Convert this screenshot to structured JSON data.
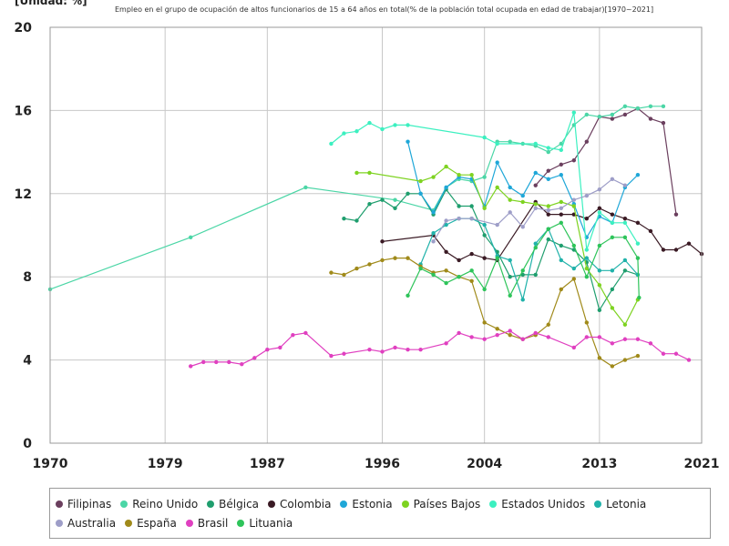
{
  "unit_label": "[Unidad: %]",
  "chart_data": {
    "type": "line",
    "title": "Empleo en el grupo de ocupación de altos funcionarios de 15 a 64 años en total(% de la población total ocupada en edad de trabajar)[1970~2021]",
    "xlabel": "",
    "ylabel": "",
    "xlim": [
      1970,
      2021
    ],
    "ylim": [
      0,
      20
    ],
    "x_ticks": [
      1970,
      1979,
      1987,
      1996,
      2004,
      2013,
      2021
    ],
    "y_ticks": [
      0,
      4,
      8,
      12,
      16,
      20
    ],
    "grid": true,
    "legend_position": "bottom",
    "series": [
      {
        "name": "Filipinas",
        "color": "#6b3f5e",
        "points": [
          [
            2008,
            12.4
          ],
          [
            2009,
            13.1
          ],
          [
            2010,
            13.4
          ],
          [
            2011,
            13.6
          ],
          [
            2012,
            14.5
          ],
          [
            2013,
            15.7
          ],
          [
            2014,
            15.6
          ],
          [
            2015,
            15.8
          ],
          [
            2016,
            16.1
          ],
          [
            2017,
            15.6
          ],
          [
            2018,
            15.4
          ],
          [
            2019,
            11.0
          ]
        ]
      },
      {
        "name": "Reino Unido",
        "color": "#4bd6a6",
        "points": [
          [
            1970,
            7.4
          ],
          [
            1981,
            9.9
          ],
          [
            1990,
            12.3
          ],
          [
            1997,
            11.7
          ],
          [
            2000,
            11.2
          ],
          [
            2001,
            12.3
          ],
          [
            2002,
            12.7
          ],
          [
            2003,
            12.6
          ],
          [
            2004,
            12.8
          ],
          [
            2005,
            14.5
          ],
          [
            2006,
            14.5
          ],
          [
            2007,
            14.4
          ],
          [
            2008,
            14.3
          ],
          [
            2009,
            14.0
          ],
          [
            2010,
            14.4
          ],
          [
            2011,
            15.3
          ],
          [
            2012,
            15.8
          ],
          [
            2013,
            15.7
          ],
          [
            2014,
            15.8
          ],
          [
            2015,
            16.2
          ],
          [
            2016,
            16.1
          ],
          [
            2017,
            16.2
          ],
          [
            2018,
            16.2
          ]
        ]
      },
      {
        "name": "Bélgica",
        "color": "#1f9e6e",
        "points": [
          [
            1993,
            10.8
          ],
          [
            1994,
            10.7
          ],
          [
            1995,
            11.5
          ],
          [
            1996,
            11.7
          ],
          [
            1997,
            11.3
          ],
          [
            1998,
            12.0
          ],
          [
            1999,
            12.0
          ],
          [
            2000,
            11.0
          ],
          [
            2001,
            12.2
          ],
          [
            2002,
            11.4
          ],
          [
            2003,
            11.4
          ],
          [
            2004,
            10.0
          ],
          [
            2005,
            9.2
          ],
          [
            2006,
            8.0
          ],
          [
            2007,
            8.1
          ],
          [
            2008,
            8.1
          ],
          [
            2009,
            9.8
          ],
          [
            2010,
            9.5
          ],
          [
            2011,
            9.3
          ],
          [
            2012,
            8.7
          ],
          [
            2013,
            6.4
          ],
          [
            2014,
            7.4
          ],
          [
            2015,
            8.3
          ],
          [
            2016,
            8.1
          ]
        ]
      },
      {
        "name": "Colombia",
        "color": "#3a1a24",
        "points": [
          [
            1996,
            9.7
          ],
          [
            2000,
            10.0
          ],
          [
            2001,
            9.2
          ],
          [
            2002,
            8.8
          ],
          [
            2003,
            9.1
          ],
          [
            2004,
            8.9
          ],
          [
            2005,
            8.8
          ],
          [
            2008,
            11.6
          ],
          [
            2009,
            11.0
          ],
          [
            2010,
            11.0
          ],
          [
            2011,
            11.0
          ],
          [
            2012,
            10.8
          ],
          [
            2013,
            11.3
          ],
          [
            2014,
            11.0
          ],
          [
            2015,
            10.8
          ],
          [
            2016,
            10.6
          ],
          [
            2017,
            10.2
          ],
          [
            2018,
            9.3
          ],
          [
            2019,
            9.3
          ],
          [
            2020,
            9.6
          ],
          [
            2021,
            9.1
          ]
        ]
      },
      {
        "name": "Estonia",
        "color": "#1fa7d8",
        "points": [
          [
            1998,
            14.5
          ],
          [
            1999,
            12.0
          ],
          [
            2000,
            11.1
          ],
          [
            2001,
            12.3
          ],
          [
            2002,
            12.8
          ],
          [
            2003,
            12.7
          ],
          [
            2004,
            11.4
          ],
          [
            2005,
            13.5
          ],
          [
            2006,
            12.3
          ],
          [
            2007,
            11.9
          ],
          [
            2008,
            13.0
          ],
          [
            2009,
            12.7
          ],
          [
            2010,
            12.9
          ],
          [
            2011,
            11.5
          ],
          [
            2012,
            9.9
          ],
          [
            2013,
            10.9
          ],
          [
            2014,
            10.6
          ],
          [
            2015,
            12.3
          ],
          [
            2016,
            12.9
          ]
        ]
      },
      {
        "name": "Países Bajos",
        "color": "#7ed321",
        "points": [
          [
            1994,
            13.0
          ],
          [
            1995,
            13.0
          ],
          [
            1999,
            12.6
          ],
          [
            2000,
            12.8
          ],
          [
            2001,
            13.3
          ],
          [
            2002,
            12.9
          ],
          [
            2003,
            12.9
          ],
          [
            2004,
            11.3
          ],
          [
            2005,
            12.3
          ],
          [
            2006,
            11.7
          ],
          [
            2007,
            11.6
          ],
          [
            2008,
            11.5
          ],
          [
            2009,
            11.4
          ],
          [
            2010,
            11.6
          ],
          [
            2011,
            11.4
          ],
          [
            2012,
            8.4
          ],
          [
            2013,
            7.6
          ],
          [
            2014,
            6.5
          ],
          [
            2015,
            5.7
          ],
          [
            2016,
            6.9
          ]
        ]
      },
      {
        "name": "Estados Unidos",
        "color": "#3cf0c0",
        "points": [
          [
            1992,
            14.4
          ],
          [
            1993,
            14.9
          ],
          [
            1994,
            15.0
          ],
          [
            1995,
            15.4
          ],
          [
            1996,
            15.1
          ],
          [
            1997,
            15.3
          ],
          [
            1998,
            15.3
          ],
          [
            2004,
            14.7
          ],
          [
            2005,
            14.4
          ],
          [
            2008,
            14.4
          ],
          [
            2009,
            14.2
          ],
          [
            2010,
            14.1
          ],
          [
            2011,
            15.9
          ],
          [
            2012,
            9.3
          ],
          [
            2013,
            11.1
          ],
          [
            2014,
            10.6
          ],
          [
            2015,
            10.6
          ],
          [
            2016,
            9.6
          ]
        ]
      },
      {
        "name": "Letonia",
        "color": "#20b2aa",
        "points": [
          [
            1999,
            8.6
          ],
          [
            2000,
            10.1
          ],
          [
            2001,
            10.5
          ],
          [
            2002,
            10.8
          ],
          [
            2003,
            10.8
          ],
          [
            2004,
            10.5
          ],
          [
            2005,
            9.0
          ],
          [
            2006,
            8.8
          ],
          [
            2007,
            6.9
          ],
          [
            2008,
            9.6
          ],
          [
            2009,
            10.3
          ],
          [
            2010,
            8.8
          ],
          [
            2011,
            8.4
          ],
          [
            2012,
            8.9
          ],
          [
            2013,
            8.3
          ],
          [
            2014,
            8.3
          ],
          [
            2015,
            8.8
          ],
          [
            2016,
            8.1
          ]
        ]
      },
      {
        "name": "Australia",
        "color": "#9e9ec8",
        "points": [
          [
            2000,
            9.7
          ],
          [
            2001,
            10.7
          ],
          [
            2002,
            10.8
          ],
          [
            2003,
            10.8
          ],
          [
            2005,
            10.5
          ],
          [
            2006,
            11.1
          ],
          [
            2007,
            10.4
          ],
          [
            2008,
            11.3
          ],
          [
            2009,
            11.2
          ],
          [
            2010,
            11.3
          ],
          [
            2011,
            11.7
          ],
          [
            2012,
            11.9
          ],
          [
            2013,
            12.2
          ],
          [
            2014,
            12.7
          ],
          [
            2015,
            12.4
          ]
        ]
      },
      {
        "name": "España",
        "color": "#a08a1a",
        "points": [
          [
            1992,
            8.2
          ],
          [
            1993,
            8.1
          ],
          [
            1994,
            8.4
          ],
          [
            1995,
            8.6
          ],
          [
            1996,
            8.8
          ],
          [
            1997,
            8.9
          ],
          [
            1998,
            8.9
          ],
          [
            1999,
            8.5
          ],
          [
            2000,
            8.2
          ],
          [
            2001,
            8.3
          ],
          [
            2002,
            8.0
          ],
          [
            2003,
            7.8
          ],
          [
            2004,
            5.8
          ],
          [
            2005,
            5.5
          ],
          [
            2006,
            5.2
          ],
          [
            2007,
            5.0
          ],
          [
            2008,
            5.2
          ],
          [
            2009,
            5.7
          ],
          [
            2010,
            7.4
          ],
          [
            2011,
            7.9
          ],
          [
            2012,
            5.8
          ],
          [
            2013,
            4.1
          ],
          [
            2014,
            3.7
          ],
          [
            2015,
            4.0
          ],
          [
            2016,
            4.2
          ]
        ]
      },
      {
        "name": "Brasil",
        "color": "#e040c0",
        "points": [
          [
            1981,
            3.7
          ],
          [
            1982,
            3.9
          ],
          [
            1983,
            3.9
          ],
          [
            1984,
            3.9
          ],
          [
            1985,
            3.8
          ],
          [
            1986,
            4.1
          ],
          [
            1987,
            4.5
          ],
          [
            1988,
            4.6
          ],
          [
            1989,
            5.2
          ],
          [
            1990,
            5.3
          ],
          [
            1992,
            4.2
          ],
          [
            1993,
            4.3
          ],
          [
            1995,
            4.5
          ],
          [
            1996,
            4.4
          ],
          [
            1997,
            4.6
          ],
          [
            1998,
            4.5
          ],
          [
            1999,
            4.5
          ],
          [
            2001,
            4.8
          ],
          [
            2002,
            5.3
          ],
          [
            2003,
            5.1
          ],
          [
            2004,
            5.0
          ],
          [
            2005,
            5.2
          ],
          [
            2006,
            5.4
          ],
          [
            2007,
            5.0
          ],
          [
            2008,
            5.3
          ],
          [
            2009,
            5.1
          ],
          [
            2011,
            4.6
          ],
          [
            2012,
            5.1
          ],
          [
            2013,
            5.1
          ],
          [
            2014,
            4.8
          ],
          [
            2015,
            5.0
          ],
          [
            2016,
            5.0
          ],
          [
            2017,
            4.8
          ],
          [
            2018,
            4.3
          ],
          [
            2019,
            4.3
          ],
          [
            2020,
            4.0
          ]
        ]
      },
      {
        "name": "Lituania",
        "color": "#2ec45a",
        "points": [
          [
            1998,
            7.1
          ],
          [
            1999,
            8.4
          ],
          [
            2000,
            8.1
          ],
          [
            2001,
            7.7
          ],
          [
            2002,
            8.0
          ],
          [
            2003,
            8.3
          ],
          [
            2004,
            7.4
          ],
          [
            2005,
            8.9
          ],
          [
            2006,
            7.1
          ],
          [
            2007,
            8.3
          ],
          [
            2008,
            9.4
          ],
          [
            2009,
            10.3
          ],
          [
            2010,
            10.6
          ],
          [
            2011,
            9.5
          ],
          [
            2012,
            8.0
          ],
          [
            2013,
            9.5
          ],
          [
            2014,
            9.9
          ],
          [
            2015,
            9.9
          ],
          [
            2016,
            8.9
          ],
          [
            2016.1,
            7.0
          ]
        ]
      }
    ]
  }
}
